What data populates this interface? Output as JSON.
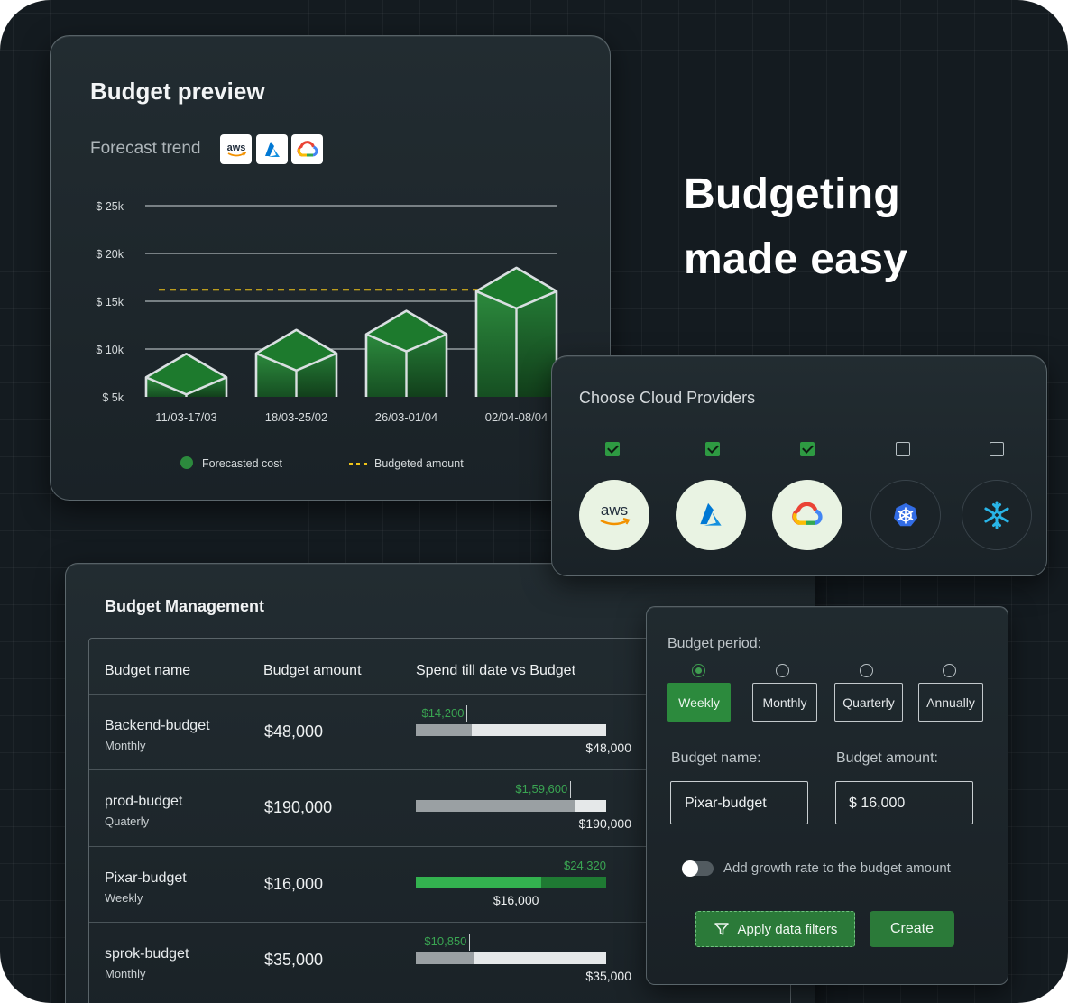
{
  "preview": {
    "title": "Budget preview",
    "forecast_label": "Forecast trend",
    "provider_logos": [
      "aws-icon",
      "azure-icon",
      "gcp-icon"
    ],
    "legend": {
      "forecast": "Forecasted cost",
      "budget": "Budgeted amount"
    }
  },
  "chart_data": {
    "type": "bar",
    "title": "",
    "categories": [
      "11/03-17/03",
      "18/03-25/02",
      "26/03-01/04",
      "02/04-08/04"
    ],
    "series": [
      {
        "name": "Forecasted cost",
        "values": [
          9.5,
          12.0,
          14.0,
          18.5
        ]
      }
    ],
    "budget_line": {
      "name": "Budgeted amount",
      "value": 16.2
    },
    "y_ticks": [
      {
        "value": 5,
        "label": "$ 5k"
      },
      {
        "value": 10,
        "label": "$ 10k"
      },
      {
        "value": 15,
        "label": "$ 15k"
      },
      {
        "value": 20,
        "label": "$ 20k"
      },
      {
        "value": 25,
        "label": "$ 25k"
      }
    ],
    "ylim": [
      5,
      25
    ],
    "grid": true,
    "legend_position": "bottom",
    "colors": {
      "bar": "#2c8a3d",
      "bar_top": "#1d7a2d",
      "edge": "#d9dfe1",
      "budget_line": "#f0c419"
    }
  },
  "hero": {
    "line1": "Budgeting",
    "line2": "made easy"
  },
  "providers": {
    "title": "Choose Cloud Providers",
    "items": [
      {
        "icon": "aws-icon",
        "checked": true
      },
      {
        "icon": "azure-icon",
        "checked": true
      },
      {
        "icon": "gcp-icon",
        "checked": true
      },
      {
        "icon": "kubernetes-icon",
        "checked": false
      },
      {
        "icon": "snowflake-icon",
        "checked": false
      }
    ]
  },
  "management": {
    "title": "Budget Management",
    "headers": {
      "name": "Budget name",
      "amount": "Budget amount",
      "spend": "Spend till date vs Budget"
    },
    "rows": [
      {
        "name": "Backend-budget",
        "period": "Monthly",
        "amount": "$48,000",
        "spend": "$14,200",
        "total": "$48,000",
        "fraction": 0.296,
        "over": false
      },
      {
        "name": "prod-budget",
        "period": "Quaterly",
        "amount": "$190,000",
        "spend": "$1,59,600",
        "total": "$190,000",
        "fraction": 0.84,
        "over": false
      },
      {
        "name": "Pixar-budget",
        "period": "Weekly",
        "amount": "$16,000",
        "spend": "$24,320",
        "total": "$16,000",
        "fraction": 1.52,
        "over": true
      },
      {
        "name": "sprok-budget",
        "period": "Monthly",
        "amount": "$35,000",
        "spend": "$10,850",
        "total": "$35,000",
        "fraction": 0.31,
        "over": false
      }
    ]
  },
  "form": {
    "period_label": "Budget period:",
    "periods": [
      "Weekly",
      "Monthly",
      "Quarterly",
      "Annually"
    ],
    "selected_period": "Weekly",
    "name_label": "Budget name:",
    "amount_label": "Budget amount:",
    "name_value": "Pixar-budget",
    "amount_value": "$ 16,000",
    "growth_label": "Add growth rate to the budget amount",
    "growth_enabled": false,
    "apply_label": "Apply data filters",
    "create_label": "Create"
  }
}
